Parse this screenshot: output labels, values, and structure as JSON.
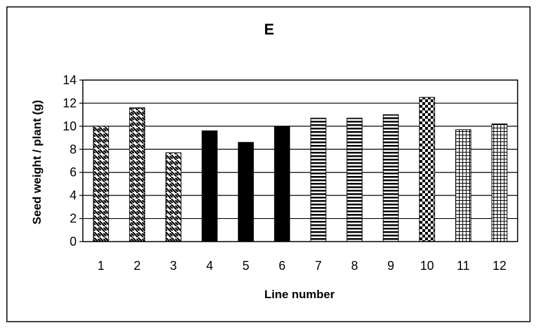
{
  "chart_data": {
    "type": "bar",
    "title": "E",
    "xlabel": "Line number",
    "ylabel": "Seed weight / plant (g)",
    "categories": [
      "1",
      "2",
      "3",
      "4",
      "5",
      "6",
      "7",
      "8",
      "9",
      "10",
      "11",
      "12"
    ],
    "values": [
      10.0,
      11.6,
      7.7,
      9.6,
      8.6,
      10.0,
      10.7,
      10.7,
      11.0,
      12.5,
      9.7,
      10.2
    ],
    "patterns": [
      "diag",
      "diag",
      "diag",
      "solid",
      "solid",
      "solid",
      "hstripe",
      "hstripe",
      "hstripe",
      "checker",
      "grid",
      "grid"
    ],
    "ylim": [
      0,
      14
    ],
    "yticks": [
      0,
      2,
      4,
      6,
      8,
      10,
      12,
      14
    ],
    "grid": true,
    "legend": "none",
    "colors": {
      "bar": "#000000",
      "background": "#ffffff",
      "border": "#000000"
    }
  }
}
